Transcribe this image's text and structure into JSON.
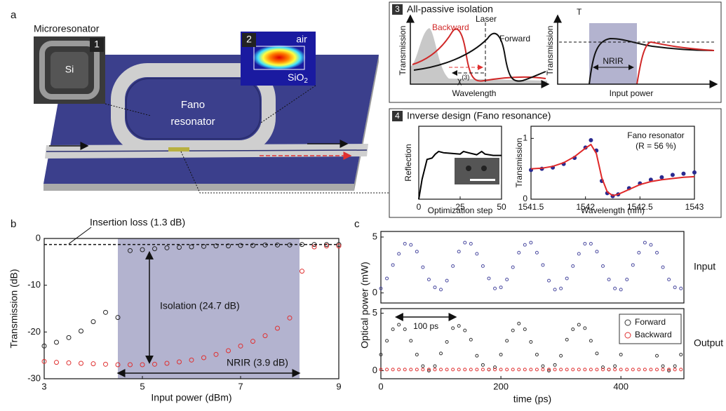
{
  "panel_labels": [
    "a",
    "b",
    "c"
  ],
  "schematic": {
    "microresonator": "Microresonator",
    "inset1_number": "1",
    "si": "Si",
    "inset2_number": "2",
    "air": "air",
    "sio2": "SiO",
    "sio2_sub": "2",
    "fano": [
      "Fano",
      "resonator"
    ]
  },
  "panel3": {
    "number": "3",
    "title": "All-passive isolation",
    "left": {
      "ylabel": "Transmission",
      "xlabel": "Wavelength",
      "laser": "Laser",
      "backward": "Backward",
      "forward": "Forward",
      "chi": "χ",
      "chi_sup": "(3)"
    },
    "right": {
      "ylabel": "Transmission",
      "xlabel": "Input power",
      "t": "T",
      "nrir": "NRIR"
    }
  },
  "panel4": {
    "number": "4",
    "title": "Inverse design (Fano resonance)"
  },
  "chart_data": [
    {
      "type": "scatter",
      "xlabel": "Input power (dBm)",
      "ylabel": "Transmission (dB)",
      "xlim": [
        3,
        9
      ],
      "xticks": [
        3,
        5,
        7,
        9
      ],
      "ylim": [
        -30,
        0
      ],
      "yticks": [
        -30,
        -20,
        -10,
        0
      ],
      "shaded": [
        4.5,
        8.2
      ],
      "shade_color": "#b3b3cf",
      "annotations": {
        "insertion_loss": {
          "label": "Insertion loss (1.3 dB)",
          "value": -1.3
        },
        "isolation": "Isolation (24.7 dB)",
        "nrir": "NRIR (3.9 dB)"
      },
      "x": [
        3,
        3.25,
        3.5,
        3.75,
        4,
        4.25,
        4.5,
        4.75,
        5,
        5.25,
        5.5,
        5.75,
        6,
        6.25,
        6.5,
        6.75,
        7,
        7.25,
        7.5,
        7.75,
        8,
        8.25,
        8.5,
        8.75,
        9
      ],
      "series": [
        {
          "color": "#222222",
          "style": "markers",
          "values": [
            -23,
            -22.2,
            -21.2,
            -19.8,
            -17.8,
            -15.8,
            -16.9,
            -2.6,
            -2.4,
            -2.2,
            -2.0,
            -1.9,
            -1.8,
            -1.7,
            -1.6,
            -1.6,
            -1.5,
            -1.5,
            -1.4,
            -1.4,
            -1.4,
            -1.3,
            -1.3,
            -1.3,
            -1.3
          ]
        },
        {
          "color": "#e03030",
          "style": "markers",
          "values": [
            -26.3,
            -26.5,
            -26.6,
            -26.7,
            -26.8,
            -26.9,
            -27,
            -27,
            -27,
            -26.9,
            -26.7,
            -26.4,
            -26,
            -25.5,
            -24.8,
            -24,
            -23,
            -22,
            -20.8,
            -19.2,
            -17,
            -7,
            -1.8,
            -1.6,
            -1.6
          ]
        }
      ]
    },
    {
      "type": "scatter",
      "label": "Input",
      "ylabel": "Optical power (mW)",
      "xlim": [
        0,
        505
      ],
      "ylim": [
        -0.9,
        5.5
      ],
      "yticks": [
        0,
        5
      ],
      "x": [
        0,
        10,
        20,
        30,
        40,
        50,
        60,
        70,
        80,
        90,
        100,
        110,
        120,
        130,
        140,
        150,
        160,
        170,
        180,
        190,
        200,
        210,
        220,
        230,
        240,
        250,
        260,
        270,
        280,
        290,
        300,
        310,
        320,
        330,
        340,
        350,
        360,
        370,
        380,
        390,
        400,
        410,
        420,
        430,
        440,
        450,
        460,
        470,
        480,
        490,
        500
      ],
      "series": [
        {
          "color": "#4a4aa0",
          "style": "markers",
          "values": [
            0.4,
            1.3,
            2.5,
            3.5,
            4.4,
            4.3,
            3.7,
            2.3,
            1.2,
            0.5,
            0.3,
            1.1,
            2.4,
            3.7,
            4.5,
            4.4,
            3.5,
            2.4,
            1.3,
            0.4,
            0.5,
            1.2,
            2.3,
            3.6,
            4.3,
            4.5,
            3.6,
            2.5,
            1.1,
            0.3,
            0.4,
            1.3,
            2.4,
            3.5,
            4.4,
            4.4,
            3.7,
            2.4,
            1.2,
            0.4,
            0.3,
            1.2,
            2.5,
            3.6,
            4.5,
            4.3,
            3.6,
            2.3,
            1.2,
            0.5,
            0.4
          ]
        }
      ]
    },
    {
      "type": "scatter",
      "label": "Output",
      "xlabel": "time (ps)",
      "legend": "upper right",
      "xlim": [
        0,
        505
      ],
      "xticks": [
        0,
        200,
        400
      ],
      "ylim": [
        -0.7,
        5.4
      ],
      "yticks": [
        0,
        5
      ],
      "annotation": {
        "label": "100 ps",
        "span": [
          25,
          125
        ]
      },
      "x": [
        0,
        10,
        20,
        30,
        40,
        50,
        60,
        70,
        80,
        90,
        100,
        110,
        120,
        130,
        140,
        150,
        160,
        170,
        180,
        190,
        200,
        210,
        220,
        230,
        240,
        250,
        260,
        270,
        280,
        290,
        300,
        310,
        320,
        330,
        340,
        350,
        360,
        370,
        380,
        390,
        400,
        410,
        420,
        430,
        440,
        450,
        460,
        470,
        480,
        490,
        500
      ],
      "series": [
        {
          "name": "Forward",
          "color": "#333333",
          "style": "markers",
          "values": [
            1.4,
            2.6,
            3.6,
            4.0,
            3.6,
            2.6,
            1.4,
            0.4,
            0.0,
            0.4,
            1.5,
            2.5,
            3.7,
            3.9,
            3.5,
            2.7,
            1.3,
            0.5,
            0.1,
            0.3,
            1.4,
            2.6,
            3.5,
            4.1,
            3.6,
            2.5,
            1.4,
            0.4,
            0.0,
            0.5,
            1.3,
            2.7,
            3.6,
            4.0,
            3.7,
            2.6,
            1.5,
            0.3,
            0.1,
            0.4,
            1.4,
            2.5,
            3.6,
            3.9,
            3.6,
            2.6,
            1.3,
            0.4,
            0.0,
            0.4,
            1.4
          ]
        },
        {
          "name": "Backward",
          "color": "#e03030",
          "style": "markers",
          "values": [
            0.1,
            0.1,
            0.1,
            0.1,
            0.1,
            0.1,
            0.1,
            0.1,
            0.1,
            0.1,
            0.1,
            0.1,
            0.1,
            0.1,
            0.1,
            0.1,
            0.1,
            0.1,
            0.1,
            0.1,
            0.1,
            0.1,
            0.1,
            0.1,
            0.1,
            0.1,
            0.1,
            0.1,
            0.1,
            0.1,
            0.1,
            0.1,
            0.1,
            0.1,
            0.1,
            0.1,
            0.1,
            0.1,
            0.1,
            0.1,
            0.1,
            0.1,
            0.1,
            0.1,
            0.1,
            0.1,
            0.1,
            0.1,
            0.1,
            0.1,
            0.1
          ]
        }
      ]
    },
    {
      "type": "line",
      "xlabel": "Optimization step",
      "ylabel": "Reflection",
      "xlim": [
        0,
        50
      ],
      "xticks": [
        0,
        25,
        50
      ],
      "ylim": [
        0,
        1.1
      ],
      "x": [
        0,
        2,
        5,
        8,
        10,
        12,
        15,
        20,
        25,
        27,
        30,
        35,
        38,
        40,
        45,
        50
      ],
      "series": [
        {
          "color": "#000000",
          "style": "line",
          "values": [
            0,
            0.3,
            0.6,
            0.62,
            0.68,
            0.72,
            0.7,
            0.69,
            0.68,
            0.72,
            0.7,
            0.67,
            0.72,
            0.68,
            0.66,
            0.66
          ]
        }
      ]
    },
    {
      "type": "line",
      "xlabel": "Wavelength (nm)",
      "ylabel": "Transmission",
      "xlim": [
        1541.5,
        1543
      ],
      "xticks": [
        1541.5,
        1542,
        1542.5,
        1543
      ],
      "ylim": [
        0,
        1.2
      ],
      "yticks": [
        0,
        1
      ],
      "annotation": [
        "Fano resonator",
        "(R = 56 %)"
      ],
      "x": [
        1541.5,
        1541.6,
        1541.7,
        1541.8,
        1541.9,
        1542,
        1542.05,
        1542.1,
        1542.15,
        1542.2,
        1542.25,
        1542.3,
        1542.4,
        1542.5,
        1542.6,
        1542.7,
        1542.8,
        1542.9,
        1543
      ],
      "series": [
        {
          "color": "#2a2a90",
          "style": "dots",
          "values": [
            0.48,
            0.5,
            0.52,
            0.58,
            0.68,
            0.85,
            0.97,
            0.8,
            0.3,
            0.1,
            0.05,
            0.08,
            0.18,
            0.26,
            0.32,
            0.36,
            0.4,
            0.42,
            0.44
          ]
        },
        {
          "color": "#e02828",
          "style": "line",
          "values": [
            0.5,
            0.51,
            0.54,
            0.6,
            0.7,
            0.84,
            0.9,
            0.75,
            0.35,
            0.12,
            0.06,
            0.08,
            0.16,
            0.24,
            0.29,
            0.32,
            0.34,
            0.36,
            0.37
          ]
        }
      ]
    }
  ]
}
